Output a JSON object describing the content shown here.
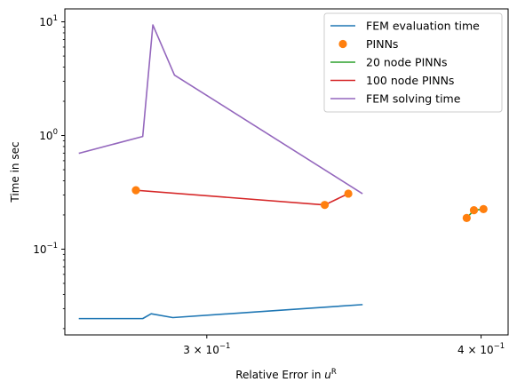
{
  "chart_data": {
    "type": "line",
    "xlabel": "Relative Error in u^R",
    "xlabel_base": "Relative Error in ",
    "xlabel_var": "u",
    "xlabel_sup": "R",
    "ylabel": "Time in sec",
    "xscale": "log",
    "yscale": "log",
    "xlim": [
      0.2585,
      0.4115
    ],
    "ylim": [
      0.0176,
      13.0
    ],
    "grid": false,
    "legend_position": "top-right",
    "x_ticks": [
      {
        "value": 0.3,
        "mantissa": "3",
        "exponent": "−1"
      },
      {
        "value": 0.4,
        "mantissa": "4",
        "exponent": "−1"
      }
    ],
    "y_ticks": [
      {
        "value": 0.1,
        "label": "10",
        "exponent": "−1"
      },
      {
        "value": 1,
        "label": "10",
        "exponent": "0"
      },
      {
        "value": 10,
        "label": "10",
        "exponent": "1"
      }
    ],
    "series": [
      {
        "name": "FEM evaluation time",
        "style": "line",
        "color": "#1f77b4",
        "points": [
          [
            0.2625,
            0.0245
          ],
          [
            0.2805,
            0.0245
          ],
          [
            0.283,
            0.027
          ],
          [
            0.2895,
            0.025
          ],
          [
            0.353,
            0.0325
          ]
        ]
      },
      {
        "name": "PINNs",
        "style": "marker",
        "color": "#ff7f0e",
        "points": [
          [
            0.2785,
            0.33
          ],
          [
            0.3395,
            0.245
          ],
          [
            0.348,
            0.308
          ],
          [
            0.394,
            0.188
          ],
          [
            0.397,
            0.22
          ],
          [
            0.401,
            0.225
          ]
        ]
      },
      {
        "name": "20 node PINNs",
        "style": "line",
        "color": "#2ca02c",
        "points": [
          [
            0.394,
            0.188
          ],
          [
            0.397,
            0.22
          ],
          [
            0.401,
            0.225
          ]
        ]
      },
      {
        "name": "100 node PINNs",
        "style": "line",
        "color": "#d62728",
        "points": [
          [
            0.2785,
            0.33
          ],
          [
            0.3395,
            0.245
          ],
          [
            0.348,
            0.308
          ]
        ]
      },
      {
        "name": "FEM solving time",
        "style": "line",
        "color": "#9467bd",
        "points": [
          [
            0.2625,
            0.7
          ],
          [
            0.2805,
            0.98
          ],
          [
            0.2835,
            9.4
          ],
          [
            0.29,
            3.4
          ],
          [
            0.353,
            0.31
          ]
        ]
      }
    ]
  }
}
